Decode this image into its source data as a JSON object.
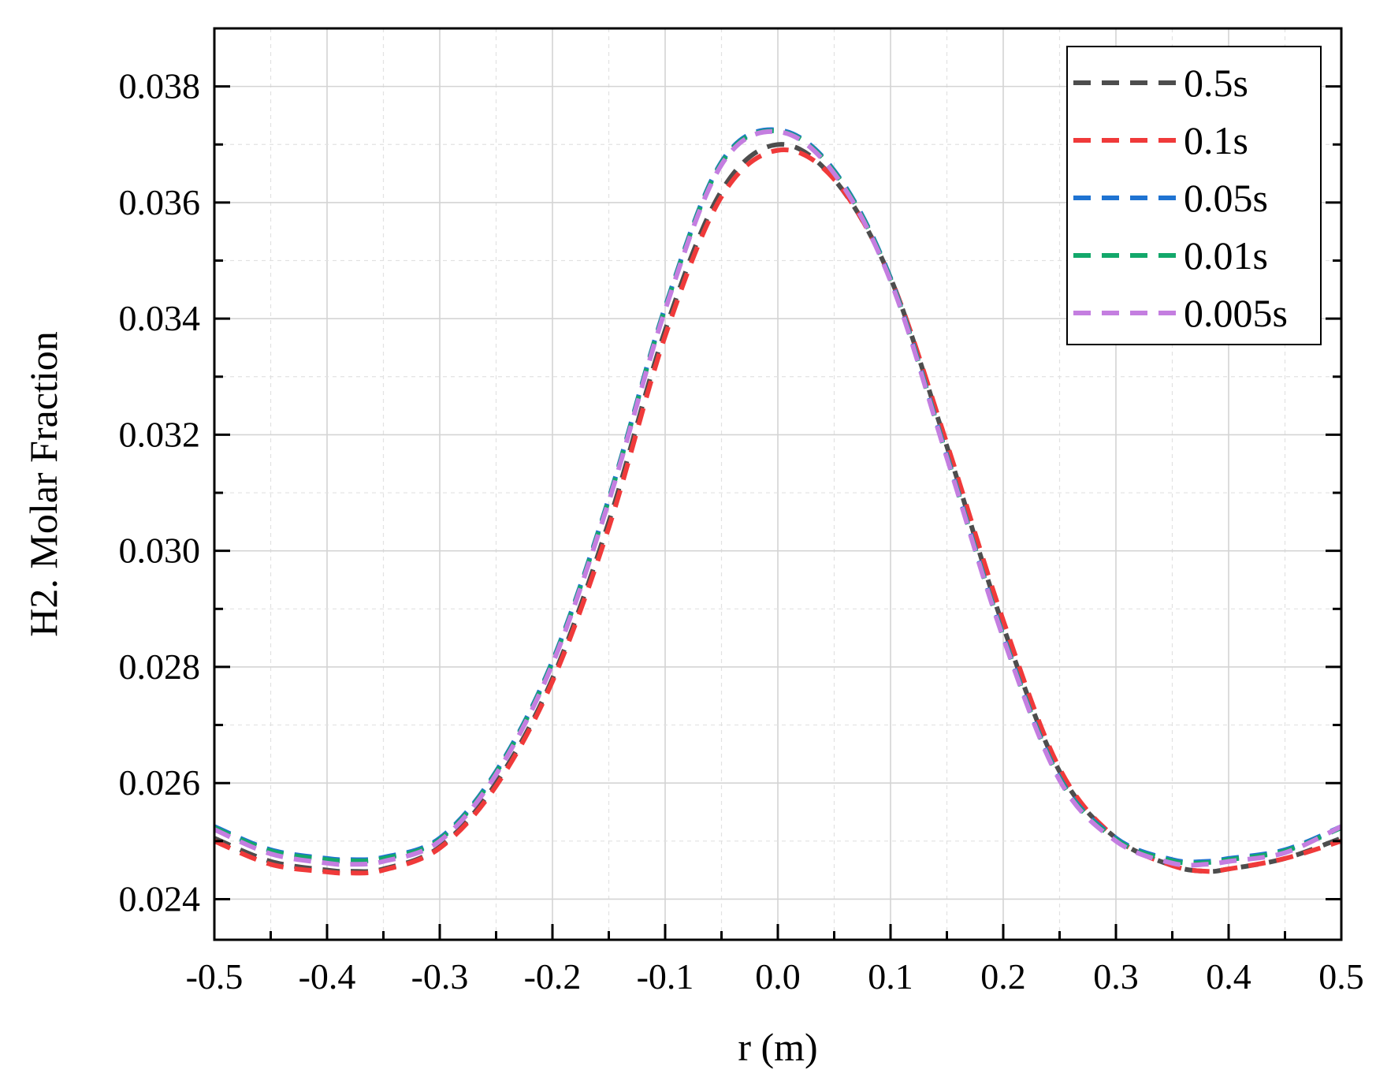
{
  "chart_data": {
    "type": "line",
    "xlabel": "r (m)",
    "ylabel": "H2. Molar Fraction",
    "xlim": [
      -0.5,
      0.5
    ],
    "ylim": [
      0.0233,
      0.039
    ],
    "xticks": [
      -0.5,
      -0.4,
      -0.3,
      -0.2,
      -0.1,
      0.0,
      0.1,
      0.2,
      0.3,
      0.4,
      0.5
    ],
    "xtick_labels": [
      "-0.5",
      "-0.4",
      "-0.3",
      "-0.2",
      "-0.1",
      "0.0",
      "0.1",
      "0.2",
      "0.3",
      "0.4",
      "0.5"
    ],
    "yticks": [
      0.024,
      0.026,
      0.028,
      0.03,
      0.032,
      0.034,
      0.036,
      0.038
    ],
    "ytick_labels": [
      "0.024",
      "0.026",
      "0.028",
      "0.030",
      "0.032",
      "0.034",
      "0.036",
      "0.038"
    ],
    "grid": true,
    "legend_position": "top-right",
    "x": [
      -0.5,
      -0.45,
      -0.4,
      -0.38,
      -0.35,
      -0.3,
      -0.25,
      -0.2,
      -0.15,
      -0.1,
      -0.05,
      0.0,
      0.05,
      0.1,
      0.15,
      0.2,
      0.25,
      0.3,
      0.35,
      0.38,
      0.4,
      0.45,
      0.5
    ],
    "series": [
      {
        "name": "0.5s",
        "color": "#4d4d4d",
        "values": [
          0.02505,
          0.02465,
          0.0245,
          0.02448,
          0.02452,
          0.0249,
          0.026,
          0.0278,
          0.0305,
          0.0338,
          0.0362,
          0.037,
          0.0364,
          0.0347,
          0.0318,
          0.0287,
          0.0262,
          0.02505,
          0.02458,
          0.02448,
          0.02452,
          0.0247,
          0.02505
        ]
      },
      {
        "name": "0.1s",
        "color": "#f03a3a",
        "values": [
          0.025,
          0.0246,
          0.02447,
          0.02445,
          0.0245,
          0.02488,
          0.02595,
          0.02775,
          0.0304,
          0.0337,
          0.0361,
          0.0369,
          0.0364,
          0.0347,
          0.03185,
          0.0288,
          0.02625,
          0.02505,
          0.02458,
          0.02448,
          0.02452,
          0.0247,
          0.025
        ]
      },
      {
        "name": "0.05s",
        "color": "#1f73d2",
        "values": [
          0.02525,
          0.02485,
          0.0247,
          0.02468,
          0.02472,
          0.02505,
          0.0262,
          0.0281,
          0.0309,
          0.0342,
          0.0367,
          0.03725,
          0.03655,
          0.0347,
          0.03165,
          0.02855,
          0.0261,
          0.02505,
          0.02468,
          0.02465,
          0.0247,
          0.02485,
          0.02525
        ]
      },
      {
        "name": "0.01s",
        "color": "#13a86b",
        "values": [
          0.02523,
          0.02483,
          0.02468,
          0.02466,
          0.0247,
          0.02503,
          0.02618,
          0.02808,
          0.03088,
          0.03418,
          0.03668,
          0.03723,
          0.03653,
          0.03468,
          0.03163,
          0.02853,
          0.02608,
          0.02503,
          0.02466,
          0.02463,
          0.02468,
          0.02483,
          0.02523
        ]
      },
      {
        "name": "0.005s",
        "color": "#c47ee0",
        "values": [
          0.0252,
          0.02478,
          0.02462,
          0.0246,
          0.02465,
          0.025,
          0.02615,
          0.02805,
          0.03085,
          0.03415,
          0.03665,
          0.03722,
          0.0365,
          0.03465,
          0.0316,
          0.0285,
          0.02605,
          0.025,
          0.02462,
          0.0246,
          0.02465,
          0.0248,
          0.02525
        ]
      }
    ]
  }
}
